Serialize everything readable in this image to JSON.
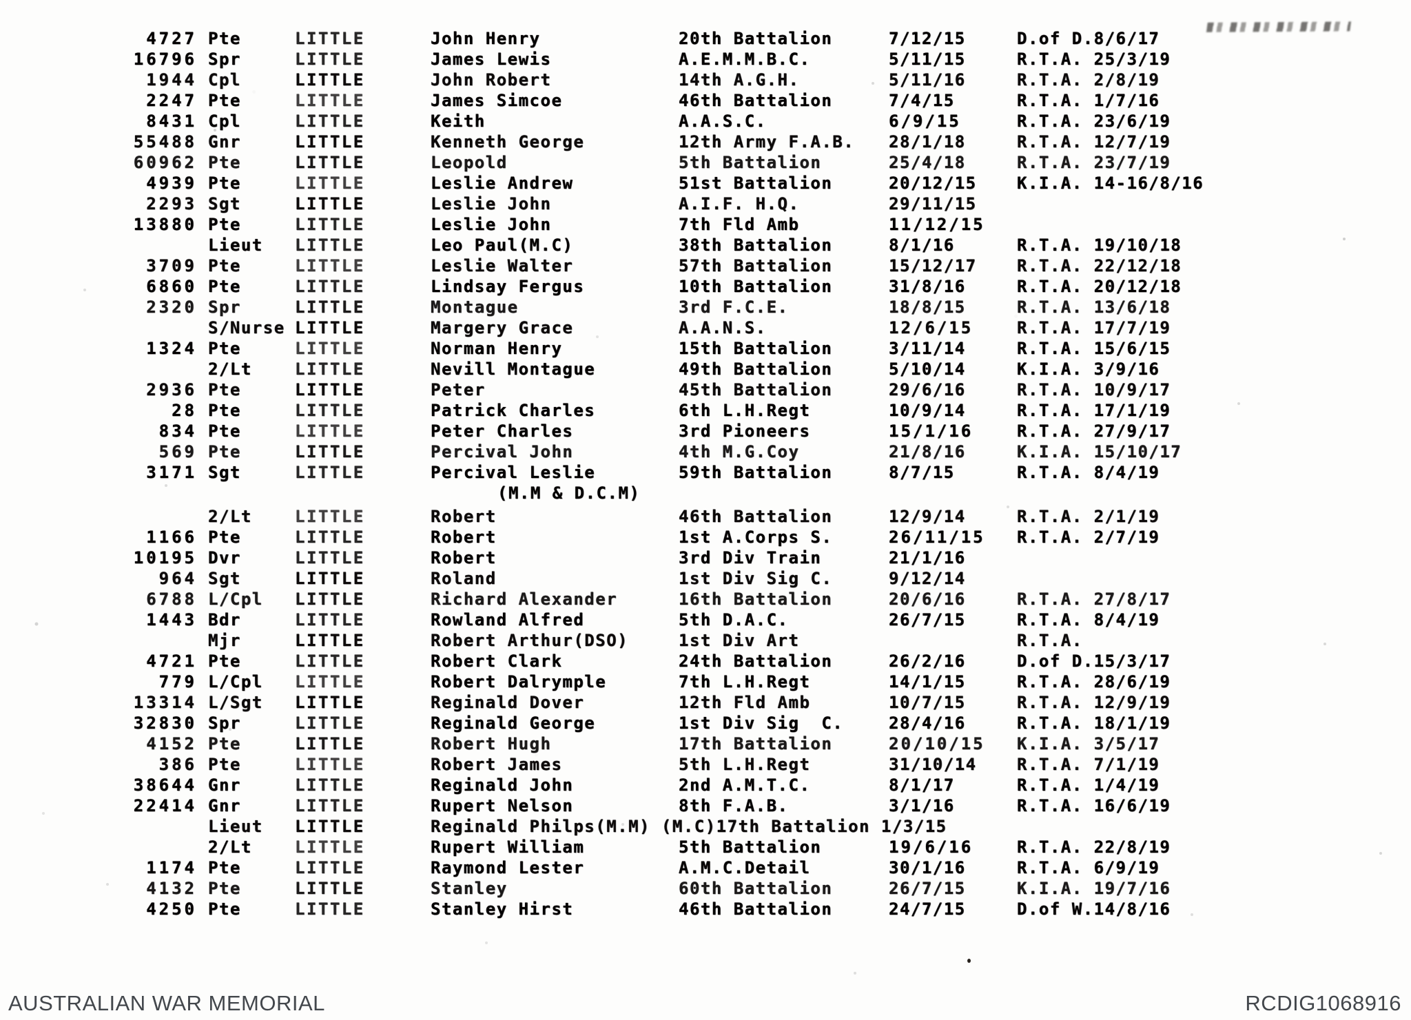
{
  "scan": {
    "rows": [
      {
        "no": "4727",
        "rank": "Pte",
        "surname": "LITTLE",
        "given": "John Henry",
        "unit": "20th Battalion",
        "enlisted": "7/12/15",
        "fate": "D.of D.8/6/17"
      },
      {
        "no": "16796",
        "rank": "Spr",
        "surname": "LITTLE",
        "given": "James Lewis",
        "unit": "A.E.M.M.B.C.",
        "enlisted": "5/11/15",
        "fate": "R.T.A. 25/3/19"
      },
      {
        "no": "1944",
        "rank": "Cpl",
        "surname": "LITTLE",
        "given": "John Robert",
        "unit": "14th A.G.H.",
        "enlisted": "5/11/16",
        "fate": "R.T.A. 2/8/19"
      },
      {
        "no": "2247",
        "rank": "Pte",
        "surname": "LITTLE",
        "given": "James Simcoe",
        "unit": "46th Battalion",
        "enlisted": "7/4/15",
        "fate": "R.T.A. 1/7/16"
      },
      {
        "no": "8431",
        "rank": "Cpl",
        "surname": "LITTLE",
        "given": "Keith",
        "unit": "A.A.S.C.",
        "enlisted": "6/9/15",
        "fate": "R.T.A. 23/6/19"
      },
      {
        "no": "55488",
        "rank": "Gnr",
        "surname": "LITTLE",
        "given": "Kenneth George",
        "unit": "12th Army F.A.B.",
        "enlisted": "28/1/18",
        "fate": "R.T.A. 12/7/19"
      },
      {
        "no": "60962",
        "rank": "Pte",
        "surname": "LITTLE",
        "given": "Leopold",
        "unit": "5th Battalion",
        "enlisted": "25/4/18",
        "fate": "R.T.A. 23/7/19"
      },
      {
        "no": "4939",
        "rank": "Pte",
        "surname": "LITTLE",
        "given": "Leslie Andrew",
        "unit": "51st Battalion",
        "enlisted": "20/12/15",
        "fate": "K.I.A. 14-16/8/16"
      },
      {
        "no": "2293",
        "rank": "Sgt",
        "surname": "LITTLE",
        "given": "Leslie John",
        "unit": "A.I.F. H.Q.",
        "enlisted": "29/11/15",
        "fate": ""
      },
      {
        "no": "13880",
        "rank": "Pte",
        "surname": "LITTLE",
        "given": "Leslie John",
        "unit": "7th Fld Amb",
        "enlisted": "11/12/15",
        "fate": ""
      },
      {
        "no": "",
        "rank": "Lieut",
        "surname": "LITTLE",
        "given": "Leo Paul(M.C)",
        "unit": "38th Battalion",
        "enlisted": "8/1/16",
        "fate": "R.T.A. 19/10/18"
      },
      {
        "no": "3709",
        "rank": "Pte",
        "surname": "LITTLE",
        "given": "Leslie Walter",
        "unit": "57th Battalion",
        "enlisted": "15/12/17",
        "fate": "R.T.A. 22/12/18"
      },
      {
        "no": "6860",
        "rank": "Pte",
        "surname": "LITTLE",
        "given": "Lindsay Fergus",
        "unit": "10th Battalion",
        "enlisted": "31/8/16",
        "fate": "R.T.A. 20/12/18"
      },
      {
        "no": "2320",
        "rank": "Spr",
        "surname": "LITTLE",
        "given": "Montague",
        "unit": "3rd F.C.E.",
        "enlisted": "18/8/15",
        "fate": "R.T.A. 13/6/18"
      },
      {
        "no": "",
        "rank": "S/Nurse",
        "surname": "LITTLE",
        "given": "Margery Grace",
        "unit": "A.A.N.S.",
        "enlisted": "12/6/15",
        "fate": "R.T.A. 17/7/19"
      },
      {
        "no": "1324",
        "rank": "Pte",
        "surname": "LITTLE",
        "given": "Norman Henry",
        "unit": "15th Battalion",
        "enlisted": "3/11/14",
        "fate": "R.T.A. 15/6/15"
      },
      {
        "no": "",
        "rank": "2/Lt",
        "surname": "LITTLE",
        "given": "Nevill Montague",
        "unit": "49th Battalion",
        "enlisted": "5/10/14",
        "fate": "K.I.A. 3/9/16"
      },
      {
        "no": "2936",
        "rank": "Pte",
        "surname": "LITTLE",
        "given": "Peter",
        "unit": "45th Battalion",
        "enlisted": "29/6/16",
        "fate": "R.T.A. 10/9/17"
      },
      {
        "no": "28",
        "rank": "Pte",
        "surname": "LITTLE",
        "given": "Patrick Charles",
        "unit": "6th L.H.Regt",
        "enlisted": "10/9/14",
        "fate": "R.T.A. 17/1/19"
      },
      {
        "no": "834",
        "rank": "Pte",
        "surname": "LITTLE",
        "given": "Peter Charles",
        "unit": "3rd Pioneers",
        "enlisted": "15/1/16",
        "fate": "R.T.A. 27/9/17"
      },
      {
        "no": "569",
        "rank": "Pte",
        "surname": "LITTLE",
        "given": "Percival John",
        "unit": "4th M.G.Coy",
        "enlisted": "21/8/16",
        "fate": "K.I.A. 15/10/17"
      },
      {
        "no": "3171",
        "rank": "Sgt",
        "surname": "LITTLE",
        "given": "Percival Leslie",
        "unit": "59th Battalion",
        "enlisted": "8/7/15",
        "fate": "R.T.A. 8/4/19"
      },
      {
        "no": "",
        "rank": "",
        "surname": "",
        "given": "(M.M & D.C.M)",
        "unit": "",
        "enlisted": "",
        "fate": "",
        "style": "indent"
      },
      {
        "no": "",
        "rank": "2/Lt",
        "surname": "LITTLE",
        "given": "Robert",
        "unit": "46th Battalion",
        "enlisted": "12/9/14",
        "fate": "R.T.A. 2/1/19"
      },
      {
        "no": "1166",
        "rank": "Pte",
        "surname": "LITTLE",
        "given": "Robert",
        "unit": "1st A.Corps S.",
        "enlisted": "26/11/15",
        "fate": "R.T.A. 2/7/19"
      },
      {
        "no": "10195",
        "rank": "Dvr",
        "surname": "LITTLE",
        "given": "Robert",
        "unit": "3rd Div Train",
        "enlisted": "21/1/16",
        "fate": ""
      },
      {
        "no": "964",
        "rank": "Sgt",
        "surname": "LITTLE",
        "given": "Roland",
        "unit": "1st Div Sig C.",
        "enlisted": "9/12/14",
        "fate": ""
      },
      {
        "no": "6788",
        "rank": "L/Cpl",
        "surname": "LITTLE",
        "given": "Richard Alexander",
        "unit": "16th Battalion",
        "enlisted": "20/6/16",
        "fate": "R.T.A. 27/8/17"
      },
      {
        "no": "1443",
        "rank": "Bdr",
        "surname": "LITTLE",
        "given": "Rowland Alfred",
        "unit": "5th D.A.C.",
        "enlisted": "26/7/15",
        "fate": "R.T.A. 8/4/19"
      },
      {
        "no": "",
        "rank": "Mjr",
        "surname": "LITTLE",
        "given": "Robert Arthur(DSO)",
        "unit": "1st Div Art",
        "enlisted": "",
        "fate": "R.T.A."
      },
      {
        "no": "4721",
        "rank": "Pte",
        "surname": "LITTLE",
        "given": "Robert Clark",
        "unit": "24th Battalion",
        "enlisted": "26/2/16",
        "fate": "D.of D.15/3/17"
      },
      {
        "no": "779",
        "rank": "L/Cpl",
        "surname": "LITTLE",
        "given": "Robert Dalrymple",
        "unit": "7th L.H.Regt",
        "enlisted": "14/1/15",
        "fate": "R.T.A. 28/6/19"
      },
      {
        "no": "13314",
        "rank": "L/Sgt",
        "surname": "LITTLE",
        "given": "Reginald Dover",
        "unit": "12th Fld Amb",
        "enlisted": "10/7/15",
        "fate": "R.T.A. 12/9/19"
      },
      {
        "no": "32830",
        "rank": "Spr",
        "surname": "LITTLE",
        "given": "Reginald George",
        "unit": "1st Div Sig  C.",
        "enlisted": "28/4/16",
        "fate": "R.T.A. 18/1/19"
      },
      {
        "no": "4152",
        "rank": "Pte",
        "surname": "LITTLE",
        "given": "Robert Hugh",
        "unit": "17th Battalion",
        "enlisted": "20/10/15",
        "fate": "K.I.A. 3/5/17"
      },
      {
        "no": "386",
        "rank": "Pte",
        "surname": "LITTLE",
        "given": "Robert James",
        "unit": "5th L.H.Regt",
        "enlisted": "31/10/14",
        "fate": "R.T.A. 7/1/19"
      },
      {
        "no": "38644",
        "rank": "Gnr",
        "surname": "LITTLE",
        "given": "Reginald John",
        "unit": "2nd A.M.T.C.",
        "enlisted": "8/1/17",
        "fate": "R.T.A. 1/4/19"
      },
      {
        "no": "22414",
        "rank": "Gnr",
        "surname": "LITTLE",
        "given": "Rupert Nelson",
        "unit": "8th F.A.B.",
        "enlisted": "3/1/16",
        "fate": "R.T.A. 16/6/19"
      },
      {
        "no": "",
        "rank": "Lieut",
        "surname": "LITTLE",
        "given": "Reginald Philps(M.M) (M.C)17th Battalion 1/3/15",
        "unit": "",
        "enlisted": "",
        "fate": "",
        "style": "merged"
      },
      {
        "no": "",
        "rank": "2/Lt",
        "surname": "LITTLE",
        "given": "Rupert William",
        "unit": "5th Battalion",
        "enlisted": "19/6/16",
        "fate": "R.T.A. 22/8/19"
      },
      {
        "no": "1174",
        "rank": "Pte",
        "surname": "LITTLE",
        "given": "Raymond Lester",
        "unit": "A.M.C.Detail",
        "enlisted": "30/1/16",
        "fate": "R.T.A. 6/9/19"
      },
      {
        "no": "4132",
        "rank": "Pte",
        "surname": "LITTLE",
        "given": "Stanley",
        "unit": "60th Battalion",
        "enlisted": "26/7/15",
        "fate": "K.I.A. 19/7/16"
      },
      {
        "no": "4250",
        "rank": "Pte",
        "surname": "LITTLE",
        "given": "Stanley Hirst",
        "unit": "46th Battalion",
        "enlisted": "24/7/15",
        "fate": "D.of W.14/8/16"
      }
    ]
  },
  "footer": {
    "source": "AUSTRALIAN WAR MEMORIAL",
    "reference": "RCDIG1068916"
  }
}
